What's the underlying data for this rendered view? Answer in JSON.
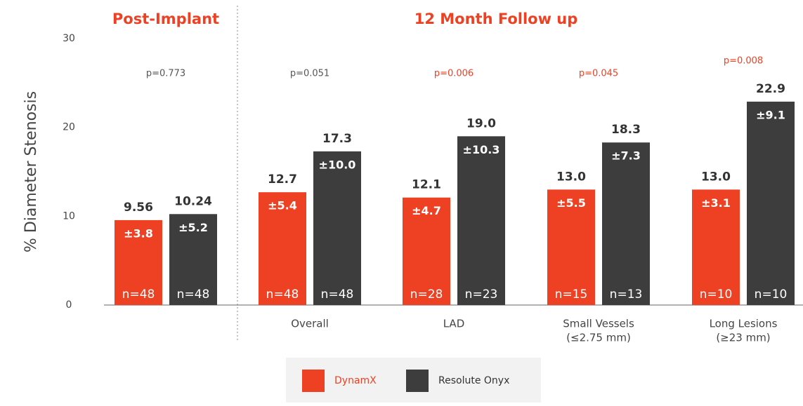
{
  "chart_data": {
    "type": "bar",
    "section_titles": [
      "Post-Implant",
      "12 Month Follow up"
    ],
    "y_label": "% Diameter Stenosis",
    "categories": [
      null,
      "Overall",
      "LAD",
      "Small Vessels",
      "Long Lesions"
    ],
    "category_notes": [
      null,
      null,
      null,
      "(≤2.75 mm)",
      "(≥23 mm)"
    ],
    "ylim": [
      0,
      30
    ],
    "yticks": [
      0,
      10,
      20,
      30
    ],
    "series": [
      {
        "name": "DynamX",
        "color": "#ee4124",
        "values": [
          9.56,
          12.7,
          12.1,
          13.0,
          13.0
        ],
        "value_labels": [
          "9.56",
          "12.7",
          "12.1",
          "13.0",
          "13.0"
        ],
        "errors": [
          3.8,
          5.4,
          4.7,
          5.5,
          3.1
        ],
        "error_labels": [
          "±3.8",
          "±5.4",
          "±4.7",
          "±5.5",
          "±3.1"
        ],
        "n": [
          48,
          48,
          28,
          15,
          10
        ],
        "n_labels": [
          "n=48",
          "n=48",
          "n=28",
          "n=15",
          "n=10"
        ]
      },
      {
        "name": "Resolute Onyx",
        "color": "#3d3d3d",
        "values": [
          10.24,
          17.3,
          19.0,
          18.3,
          22.9
        ],
        "value_labels": [
          "10.24",
          "17.3",
          "19.0",
          "18.3",
          "22.9"
        ],
        "errors": [
          5.2,
          10.0,
          10.3,
          7.3,
          9.1
        ],
        "error_labels": [
          "±5.2",
          "±10.0",
          "±10.3",
          "±7.3",
          "±9.1"
        ],
        "n": [
          48,
          48,
          23,
          13,
          10
        ],
        "n_labels": [
          "n=48",
          "n=48",
          "n=23",
          "n=13",
          "n=10"
        ]
      }
    ],
    "p_values": [
      "p=0.773",
      "p=0.051",
      "p=0.006",
      "p=0.045",
      "p=0.008"
    ],
    "p_value_colors": [
      "#555555",
      "#555555",
      "#ee4124",
      "#ee4124",
      "#ee4124"
    ]
  }
}
